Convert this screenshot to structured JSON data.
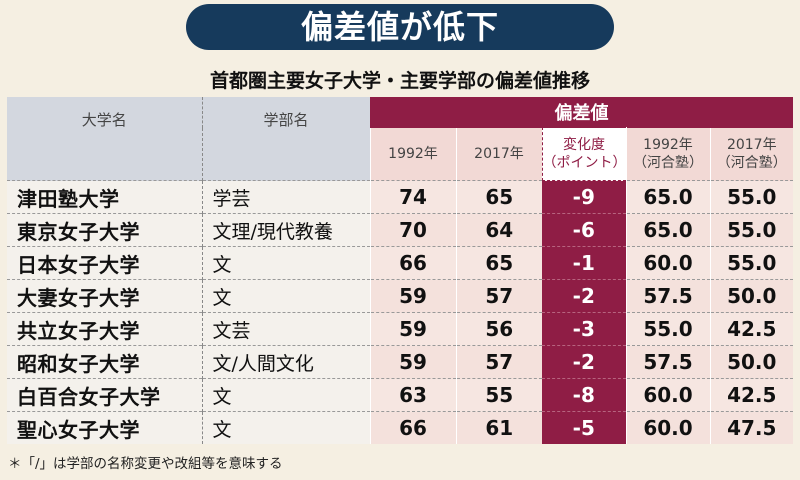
{
  "title": "偏差値が低下",
  "subtitle": "首都圏主要女子大学・主要学部の偏差値推移",
  "footnote": "＊「/」は学部の名称変更や改組等を意味する",
  "colors": {
    "banner": "#163a5c",
    "accent": "#8f1d45"
  },
  "chart_data": {
    "type": "table",
    "group_header": "偏差値",
    "columns": [
      "大学名",
      "学部名",
      "1992年",
      "2017年",
      "変化度（ポイント）",
      "1992年（河合塾）",
      "2017年（河合塾）"
    ],
    "column_labels": {
      "university": "大学名",
      "faculty": "学部名",
      "y1992": "1992年",
      "y2017": "2017年",
      "change_l1": "変化度",
      "change_l2": "（ポイント）",
      "k1992_l1": "1992年",
      "k1992_l2": "（河合塾）",
      "k2017_l1": "2017年",
      "k2017_l2": "（河合塾）"
    },
    "rows": [
      {
        "university": "津田塾大学",
        "faculty": "学芸",
        "y1992": "74",
        "y2017": "65",
        "change": "-9",
        "k1992": "65.0",
        "k2017": "55.0"
      },
      {
        "university": "東京女子大学",
        "faculty": "文理/現代教養",
        "y1992": "70",
        "y2017": "64",
        "change": "-6",
        "k1992": "65.0",
        "k2017": "55.0"
      },
      {
        "university": "日本女子大学",
        "faculty": "文",
        "y1992": "66",
        "y2017": "65",
        "change": "-1",
        "k1992": "60.0",
        "k2017": "55.0"
      },
      {
        "university": "大妻女子大学",
        "faculty": "文",
        "y1992": "59",
        "y2017": "57",
        "change": "-2",
        "k1992": "57.5",
        "k2017": "50.0"
      },
      {
        "university": "共立女子大学",
        "faculty": "文芸",
        "y1992": "59",
        "y2017": "56",
        "change": "-3",
        "k1992": "55.0",
        "k2017": "42.5"
      },
      {
        "university": "昭和女子大学",
        "faculty": "文/人間文化",
        "y1992": "59",
        "y2017": "57",
        "change": "-2",
        "k1992": "57.5",
        "k2017": "50.0"
      },
      {
        "university": "白百合女子大学",
        "faculty": "文",
        "y1992": "63",
        "y2017": "55",
        "change": "-8",
        "k1992": "60.0",
        "k2017": "42.5"
      },
      {
        "university": "聖心女子大学",
        "faculty": "文",
        "y1992": "66",
        "y2017": "61",
        "change": "-5",
        "k1992": "60.0",
        "k2017": "47.5"
      }
    ]
  }
}
